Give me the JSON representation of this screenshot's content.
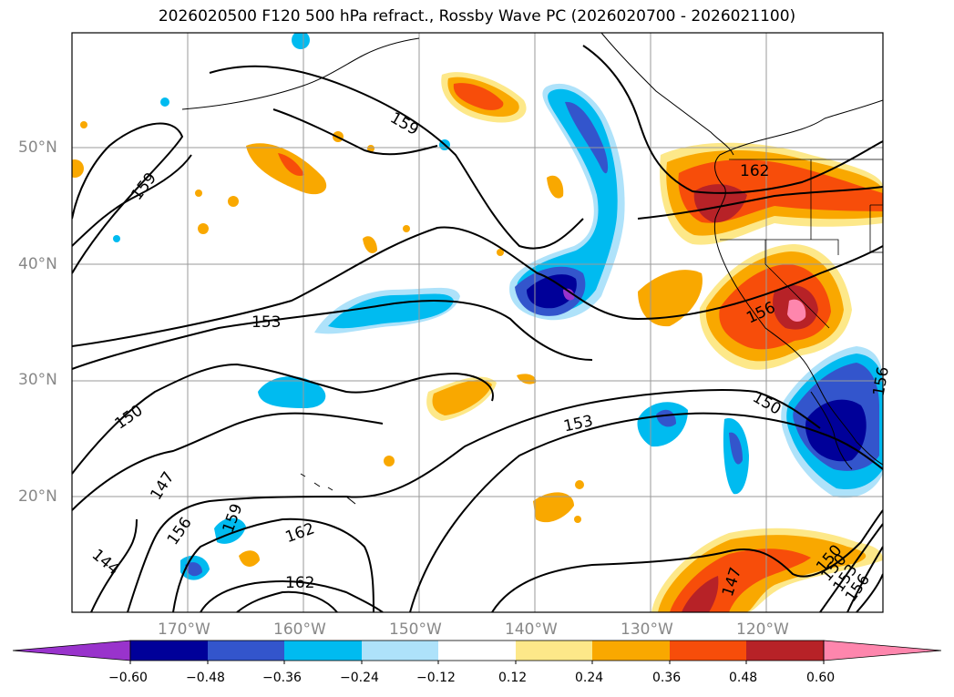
{
  "title": "2026020500 F120 500 hPa refract., Rossby Wave PC (2026020700 - 2026021100)",
  "lat_labels": [
    "50°N",
    "40°N",
    "30°N",
    "20°N"
  ],
  "lon_labels": [
    "170°W",
    "160°W",
    "150°W",
    "140°W",
    "130°W",
    "120°W"
  ],
  "contour_labels": [
    "159",
    "159",
    "153",
    "150",
    "147",
    "156",
    "159",
    "162",
    "162",
    "144",
    "153",
    "150",
    "156",
    "162",
    "150",
    "147",
    "150",
    "153",
    "156",
    "156"
  ],
  "colorbar": {
    "ticks": [
      "−0.60",
      "−0.48",
      "−0.36",
      "−0.24",
      "−0.12",
      "0.12",
      "0.24",
      "0.36",
      "0.48",
      "0.60"
    ],
    "colors": [
      "#9933cc",
      "#000099",
      "#3355cc",
      "#00bbf0",
      "#aee2fa",
      "#ffffff",
      "#fde889",
      "#f9a800",
      "#f74d0a",
      "#b72227",
      "#fe86ad"
    ]
  }
}
